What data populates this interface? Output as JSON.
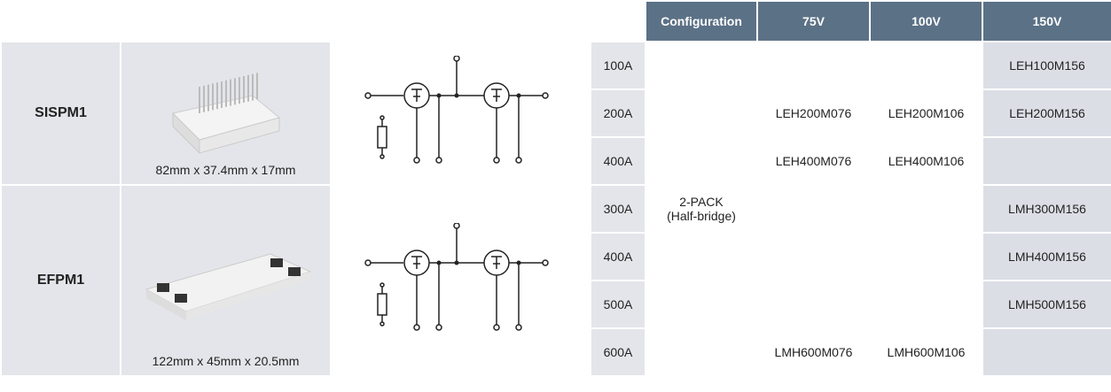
{
  "header": [
    "Configuration",
    "75V",
    "100V",
    "150V"
  ],
  "configuration": [
    "2-PACK",
    "(Half-bridge)"
  ],
  "groups": [
    {
      "name": "SISPM1",
      "dimensions": "82mm x 37.4mm x 17mm"
    },
    {
      "name": "EFPM1",
      "dimensions": "122mm x 45mm x 20.5mm"
    }
  ],
  "rows": [
    {
      "current": "100A",
      "parts": [
        null,
        null,
        "LEH100M156"
      ]
    },
    {
      "current": "200A",
      "parts": [
        "LEH200M076",
        "LEH200M106",
        "LEH200M156"
      ]
    },
    {
      "current": "400A",
      "parts": [
        "LEH400M076",
        "LEH400M106",
        null
      ]
    },
    {
      "current": "300A",
      "parts": [
        null,
        null,
        "LMH300M156"
      ]
    },
    {
      "current": "400A",
      "parts": [
        null,
        null,
        "LMH400M156"
      ]
    },
    {
      "current": "500A",
      "parts": [
        null,
        null,
        "LMH500M156"
      ]
    },
    {
      "current": "600A",
      "parts": [
        "LMH600M076",
        "LMH600M106",
        null
      ]
    }
  ]
}
